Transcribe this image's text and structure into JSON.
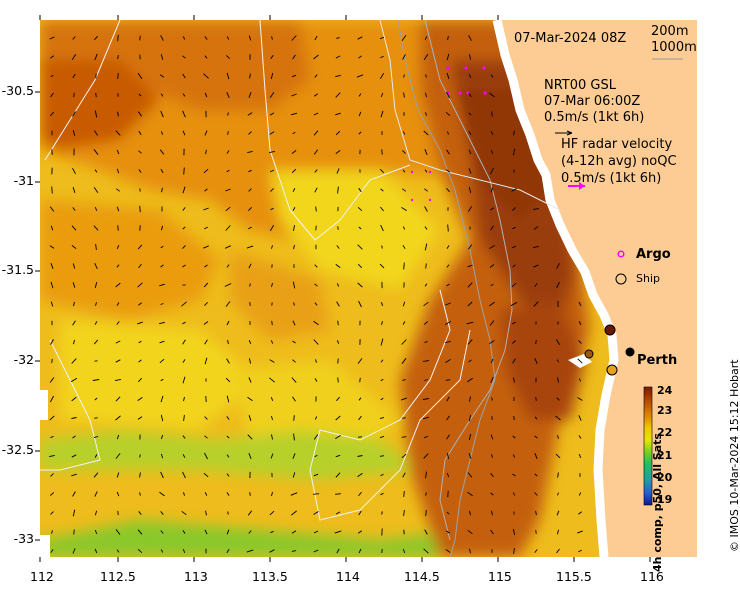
{
  "header": {
    "timestamp": "07-Mar-2024 08Z",
    "contour_200": "200m",
    "contour_1000": "1000m"
  },
  "legend": {
    "gsl_title": "NRT00 GSL",
    "gsl_time": "07-Mar 06:00Z",
    "gsl_scale": "0.5m/s (1kt 6h)",
    "hf_title": "HF radar velocity",
    "hf_sub": "(4-12h avg) noQC",
    "hf_scale": "0.5m/s (1kt 6h)",
    "argo": "Argo",
    "ship": "Ship",
    "hf_color": "#ff00ff"
  },
  "place": {
    "city": "Perth"
  },
  "colorbar": {
    "label": "4h comp, p50, All Sats",
    "ticks": [
      "24",
      "23",
      "22",
      "21",
      "20",
      "19"
    ],
    "stops": [
      "#7a1a00",
      "#b84a00",
      "#e08a00",
      "#f0c800",
      "#e6e600",
      "#7ad020",
      "#20c060",
      "#20a0a0",
      "#2060d0",
      "#0a1890"
    ]
  },
  "axes": {
    "x_ticks": [
      "112",
      "112.5",
      "113",
      "113.5",
      "114",
      "114.5",
      "115",
      "115.5",
      "116"
    ],
    "y_ticks": [
      "-30.5",
      "-31",
      "-31.5",
      "-32",
      "-32.5",
      "-33"
    ]
  },
  "credit": "© IMOS 10-Mar-2024 15:12 Hobart"
}
